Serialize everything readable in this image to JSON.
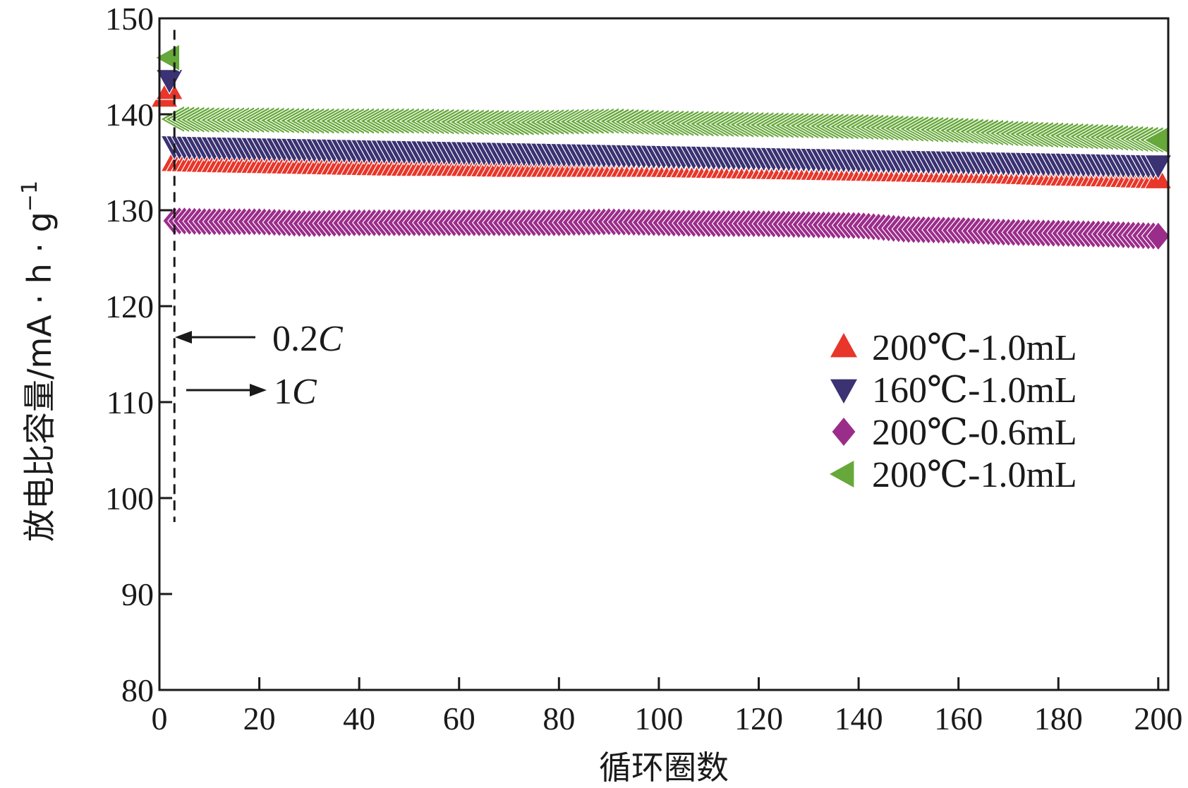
{
  "chart_data": {
    "type": "scatter",
    "title": "",
    "xlabel": "循环圈数",
    "ylabel": "放电比容量/mA·h·g⁻¹",
    "ylabel_base": "放电比容量/mA · h · g",
    "ylabel_sup": "−1",
    "xlim": [
      0,
      202
    ],
    "ylim": [
      80,
      150
    ],
    "xticks": [
      0,
      20,
      40,
      60,
      80,
      100,
      120,
      140,
      160,
      180,
      200
    ],
    "yticks": [
      80,
      90,
      100,
      110,
      120,
      130,
      140,
      150
    ],
    "annotations": {
      "dashed_line_x": 3,
      "dashed_line_y_range": [
        97.5,
        148.8
      ],
      "rate_low_label": "0.2C",
      "rate_low_num": "0.2",
      "rate_low_unit": "C",
      "rate_high_label": "1C",
      "rate_high_num": "1",
      "rate_high_unit": "C"
    },
    "legend_position": "right-center",
    "series": [
      {
        "name": "200℃-1.0mL",
        "marker": "triangle-up",
        "color": "#e8362a",
        "initial": [
          [
            1,
            141.8
          ],
          [
            2,
            142.6
          ]
        ],
        "x": [
          3,
          10,
          20,
          30,
          40,
          50,
          60,
          70,
          80,
          90,
          100,
          110,
          120,
          130,
          140,
          150,
          160,
          170,
          180,
          190,
          200
        ],
        "values": [
          135.1,
          135.0,
          134.9,
          134.8,
          134.7,
          134.6,
          134.6,
          134.5,
          134.5,
          134.5,
          134.5,
          134.4,
          134.3,
          134.2,
          134.1,
          134.0,
          133.9,
          133.8,
          133.6,
          133.5,
          133.3
        ]
      },
      {
        "name": "160℃-1.0mL",
        "marker": "triangle-down",
        "color": "#3a3272",
        "initial": [
          [
            2,
            143.6
          ]
        ],
        "x": [
          3,
          10,
          20,
          30,
          40,
          50,
          60,
          70,
          80,
          90,
          100,
          110,
          120,
          130,
          140,
          150,
          160,
          170,
          180,
          190,
          200
        ],
        "values": [
          136.7,
          136.6,
          136.5,
          136.4,
          136.3,
          136.2,
          136.1,
          136.0,
          135.9,
          135.8,
          135.7,
          135.6,
          135.5,
          135.4,
          135.3,
          135.2,
          135.1,
          135.0,
          134.9,
          134.8,
          134.7
        ]
      },
      {
        "name": "200℃-0.6mL",
        "marker": "diamond",
        "color": "#9b2d8a",
        "initial": [],
        "x": [
          3,
          10,
          20,
          30,
          40,
          50,
          60,
          70,
          80,
          90,
          100,
          110,
          120,
          130,
          140,
          150,
          160,
          170,
          180,
          190,
          200
        ],
        "values": [
          128.9,
          128.8,
          128.8,
          128.6,
          128.7,
          128.7,
          128.7,
          128.7,
          128.7,
          128.8,
          128.7,
          128.6,
          128.6,
          128.5,
          128.4,
          128.0,
          127.9,
          127.7,
          127.6,
          127.5,
          127.3
        ]
      },
      {
        "name": "200℃-1.0mL",
        "marker": "triangle-left",
        "color": "#66a83a",
        "initial": [
          [
            2,
            145.9
          ]
        ],
        "x": [
          3,
          10,
          20,
          30,
          40,
          50,
          60,
          70,
          80,
          90,
          100,
          110,
          120,
          130,
          140,
          150,
          160,
          170,
          180,
          190,
          200
        ],
        "values": [
          139.5,
          139.4,
          139.4,
          139.3,
          139.3,
          139.3,
          139.2,
          139.1,
          139.2,
          139.3,
          139.1,
          139.0,
          138.9,
          138.8,
          138.7,
          138.5,
          138.3,
          138.0,
          137.8,
          137.6,
          137.3
        ]
      }
    ]
  }
}
